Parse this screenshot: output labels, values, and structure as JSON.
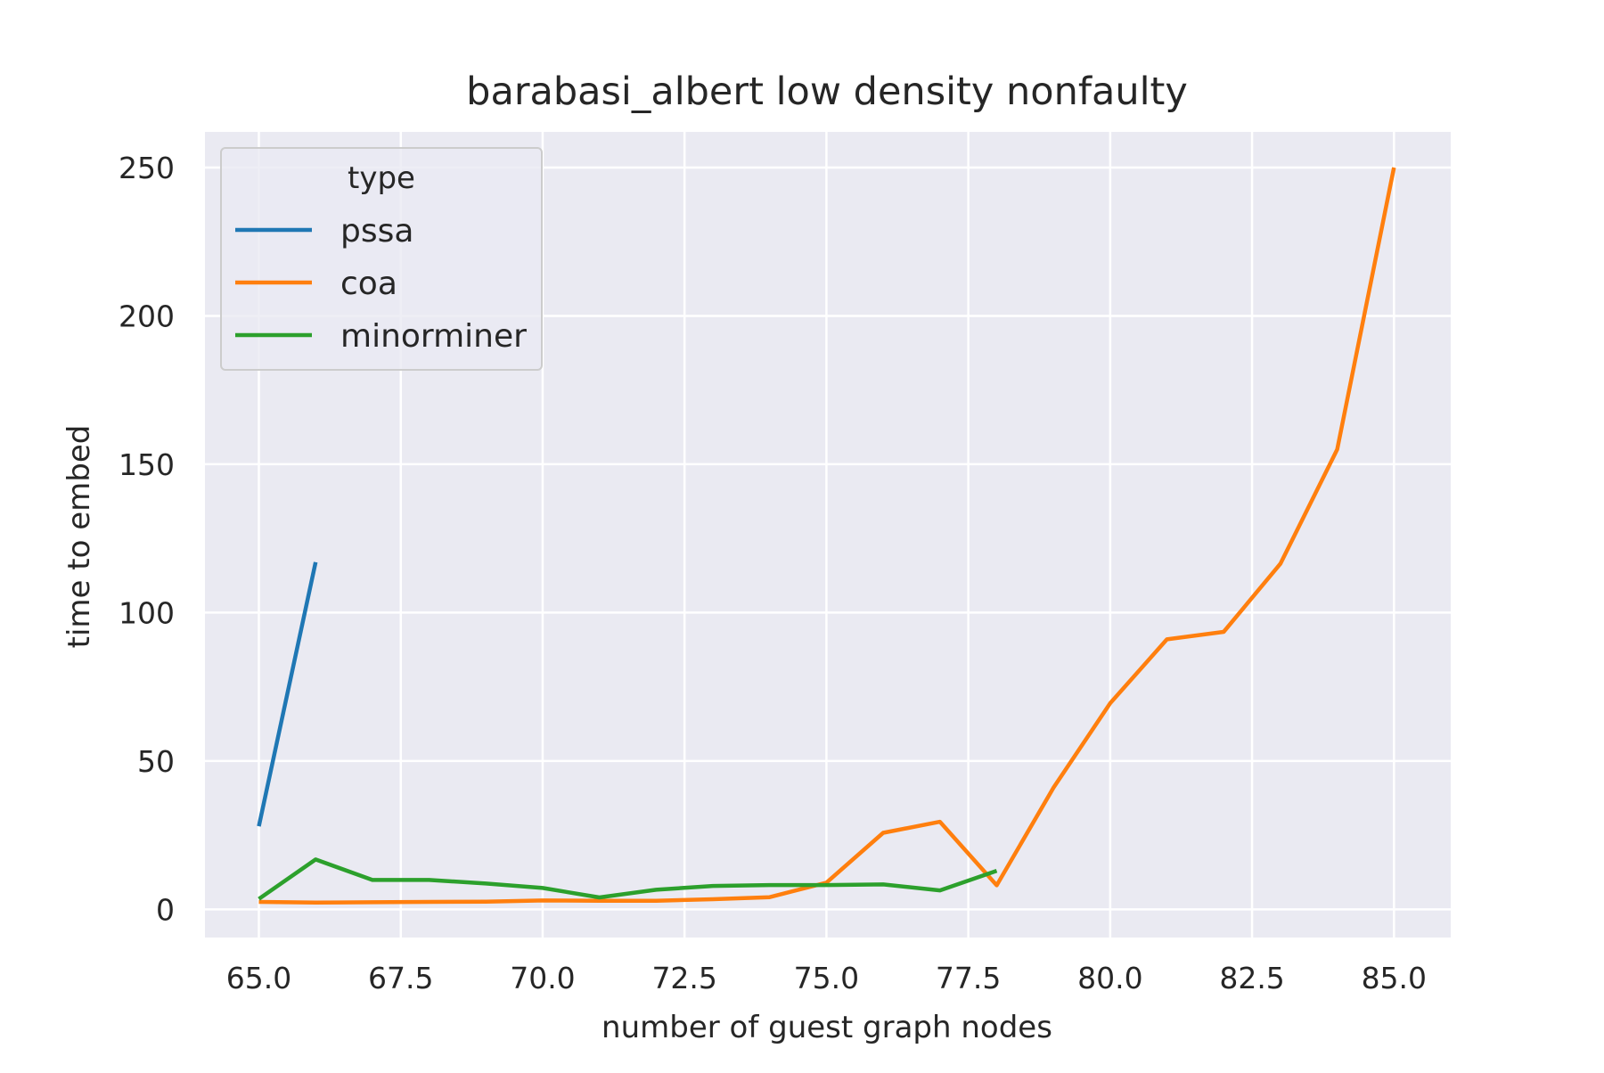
{
  "chart_data": {
    "type": "line",
    "title": "barabasi_albert low density nonfaulty",
    "xlabel": "number of guest graph nodes",
    "ylabel": "time to embed",
    "xlim": [
      64.05,
      86.0
    ],
    "ylim": [
      -9.5,
      262
    ],
    "x_ticks": [
      65.0,
      67.5,
      70.0,
      72.5,
      75.0,
      77.5,
      80.0,
      82.5,
      85.0
    ],
    "x_tick_labels": [
      "65.0",
      "67.5",
      "70.0",
      "72.5",
      "75.0",
      "77.5",
      "80.0",
      "82.5",
      "85.0"
    ],
    "y_ticks": [
      0,
      50,
      100,
      150,
      200,
      250
    ],
    "y_tick_labels": [
      "0",
      "50",
      "100",
      "150",
      "200",
      "250"
    ],
    "grid": true,
    "legend": {
      "title": "type",
      "placement": "top-left"
    },
    "series": [
      {
        "name": "pssa",
        "color": "#1f77b4",
        "x": [
          65,
          66
        ],
        "y": [
          28,
          117
        ]
      },
      {
        "name": "coa",
        "color": "#ff7f0e",
        "x": [
          65,
          66,
          67,
          68,
          69,
          70,
          71,
          72,
          73,
          74,
          75,
          76,
          77,
          78,
          79,
          80,
          81,
          82,
          83,
          84,
          85
        ],
        "y": [
          2.5,
          2.3,
          2.4,
          2.5,
          2.6,
          3.0,
          2.9,
          2.9,
          3.4,
          4.1,
          9.0,
          25.8,
          29.5,
          8.1,
          41.0,
          69.5,
          91.0,
          93.5,
          116.5,
          155.0,
          250.0
        ]
      },
      {
        "name": "minorminer",
        "color": "#2ca02c",
        "x": [
          65,
          66,
          67,
          68,
          69,
          70,
          71,
          72,
          73,
          74,
          75,
          76,
          77,
          78
        ],
        "y": [
          3.5,
          16.8,
          9.9,
          9.9,
          8.7,
          7.2,
          4.0,
          6.6,
          7.9,
          8.2,
          8.2,
          8.4,
          6.4,
          13.0
        ]
      }
    ]
  }
}
